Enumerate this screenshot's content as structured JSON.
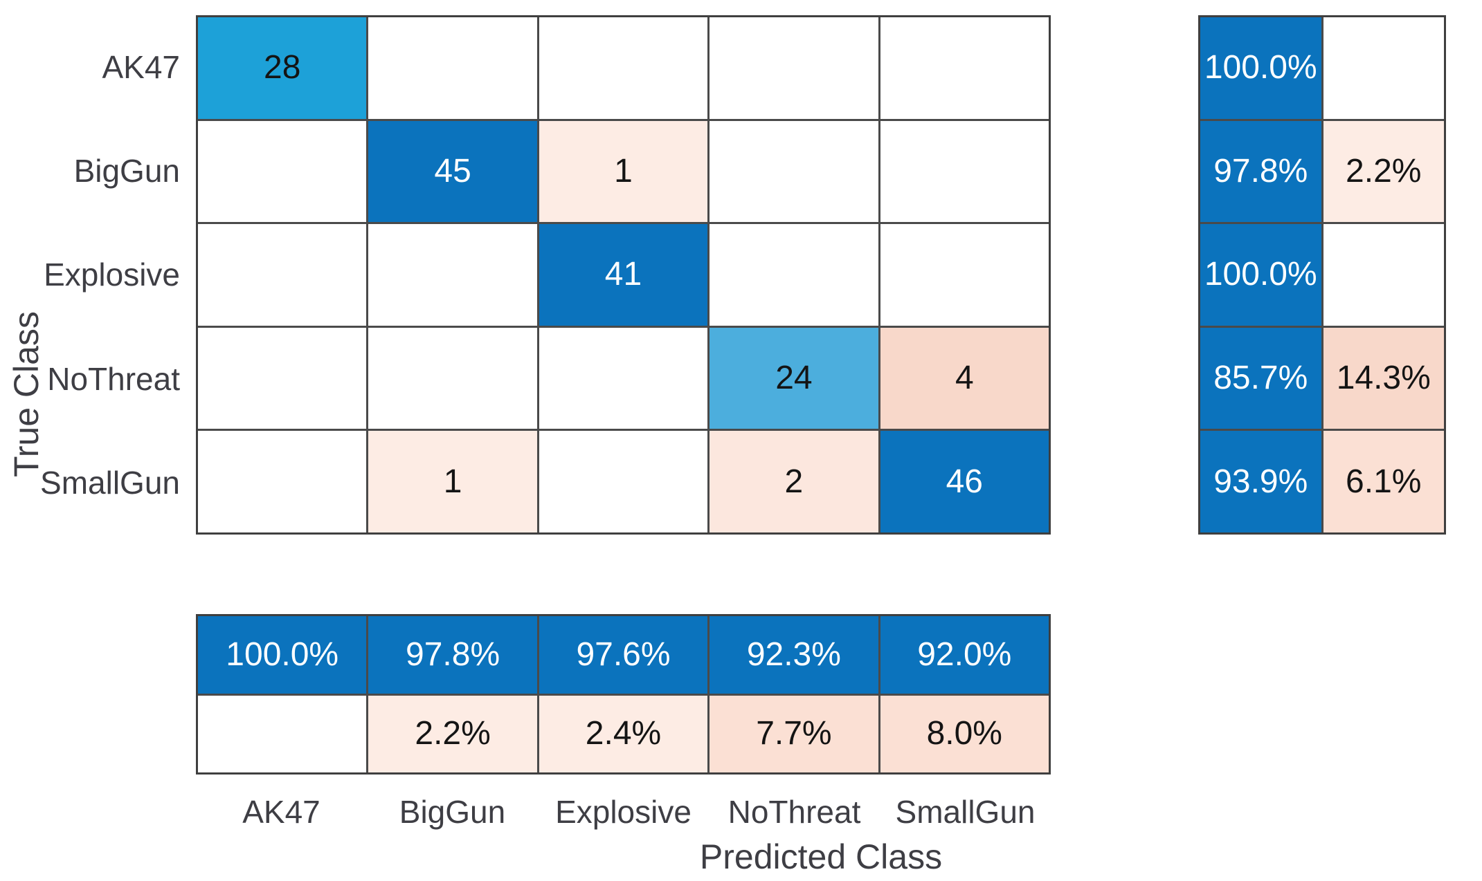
{
  "chart_data": {
    "type": "heatmap",
    "subtype": "confusion-matrix",
    "title": "",
    "xlabel": "Predicted Class",
    "ylabel": "True Class",
    "classes": [
      "AK47",
      "BigGun",
      "Explosive",
      "NoThreat",
      "SmallGun"
    ],
    "matrix_counts": [
      [
        28,
        null,
        null,
        null,
        null
      ],
      [
        null,
        45,
        1,
        null,
        null
      ],
      [
        null,
        null,
        41,
        null,
        null
      ],
      [
        null,
        null,
        null,
        24,
        4
      ],
      [
        null,
        1,
        null,
        2,
        46
      ]
    ],
    "row_summary_pct": [
      [
        "100.0%",
        ""
      ],
      [
        "97.8%",
        "2.2%"
      ],
      [
        "100.0%",
        ""
      ],
      [
        "85.7%",
        "14.3%"
      ],
      [
        "93.9%",
        "6.1%"
      ]
    ],
    "col_summary_pct": [
      [
        "100.0%",
        "97.8%",
        "97.6%",
        "92.3%",
        "92.0%"
      ],
      [
        "",
        "2.2%",
        "2.4%",
        "7.7%",
        "8.0%"
      ]
    ],
    "legend_position": "none",
    "grid": true
  },
  "colors": {
    "blue_dark": "#0b73bd",
    "blue_sky": "#1da1d8",
    "blue_light": "#4caedd",
    "pink_lightest": "#fdece4",
    "pink_light": "#fce7de",
    "pink_mid": "#fbe0d4",
    "pink_deep": "#f8d8ca",
    "cell_white": "#ffffff",
    "text_dark": "#141414",
    "text_white": "#ffffff",
    "grid_line": "#4a4a4a",
    "label_color": "#3e3e44"
  },
  "labels": {
    "row": [
      "AK47",
      "BigGun",
      "Explosive",
      "NoThreat",
      "SmallGun"
    ],
    "col": [
      "AK47",
      "BigGun",
      "Explosive",
      "NoThreat",
      "SmallGun"
    ],
    "xlabel": "Predicted Class",
    "ylabel": "True Class"
  },
  "cells": {
    "main": [
      [
        {
          "t": "28",
          "bg": "#1da1d8",
          "fg": "#141414"
        },
        {
          "t": ""
        },
        {
          "t": ""
        },
        {
          "t": ""
        },
        {
          "t": ""
        }
      ],
      [
        {
          "t": ""
        },
        {
          "t": "45",
          "bg": "#0b73bd",
          "fg": "#ffffff"
        },
        {
          "t": "1",
          "bg": "#fdece4"
        },
        {
          "t": ""
        },
        {
          "t": ""
        }
      ],
      [
        {
          "t": ""
        },
        {
          "t": ""
        },
        {
          "t": "41",
          "bg": "#0b73bd",
          "fg": "#ffffff"
        },
        {
          "t": ""
        },
        {
          "t": ""
        }
      ],
      [
        {
          "t": ""
        },
        {
          "t": ""
        },
        {
          "t": ""
        },
        {
          "t": "24",
          "bg": "#4caedd",
          "fg": "#141414"
        },
        {
          "t": "4",
          "bg": "#f8d8ca"
        }
      ],
      [
        {
          "t": ""
        },
        {
          "t": "1",
          "bg": "#fdece4"
        },
        {
          "t": ""
        },
        {
          "t": "2",
          "bg": "#fce7de"
        },
        {
          "t": "46",
          "bg": "#0b73bd",
          "fg": "#ffffff"
        }
      ]
    ],
    "row_summary": [
      [
        {
          "t": "100.0%",
          "bg": "#0b73bd",
          "fg": "#ffffff"
        },
        {
          "t": ""
        }
      ],
      [
        {
          "t": "97.8%",
          "bg": "#0b73bd",
          "fg": "#ffffff"
        },
        {
          "t": "2.2%",
          "bg": "#fdece4"
        }
      ],
      [
        {
          "t": "100.0%",
          "bg": "#0b73bd",
          "fg": "#ffffff"
        },
        {
          "t": ""
        }
      ],
      [
        {
          "t": "85.7%",
          "bg": "#0b73bd",
          "fg": "#ffffff"
        },
        {
          "t": "14.3%",
          "bg": "#f8d8ca"
        }
      ],
      [
        {
          "t": "93.9%",
          "bg": "#0b73bd",
          "fg": "#ffffff"
        },
        {
          "t": "6.1%",
          "bg": "#fbe0d4"
        }
      ]
    ],
    "col_summary": [
      [
        {
          "t": "100.0%",
          "bg": "#0b73bd",
          "fg": "#ffffff"
        },
        {
          "t": "97.8%",
          "bg": "#0b73bd",
          "fg": "#ffffff"
        },
        {
          "t": "97.6%",
          "bg": "#0b73bd",
          "fg": "#ffffff"
        },
        {
          "t": "92.3%",
          "bg": "#0b73bd",
          "fg": "#ffffff"
        },
        {
          "t": "92.0%",
          "bg": "#0b73bd",
          "fg": "#ffffff"
        }
      ],
      [
        {
          "t": ""
        },
        {
          "t": "2.2%",
          "bg": "#fdece4"
        },
        {
          "t": "2.4%",
          "bg": "#fdece4"
        },
        {
          "t": "7.7%",
          "bg": "#fbe0d4"
        },
        {
          "t": "8.0%",
          "bg": "#fbe0d4"
        }
      ]
    ]
  }
}
